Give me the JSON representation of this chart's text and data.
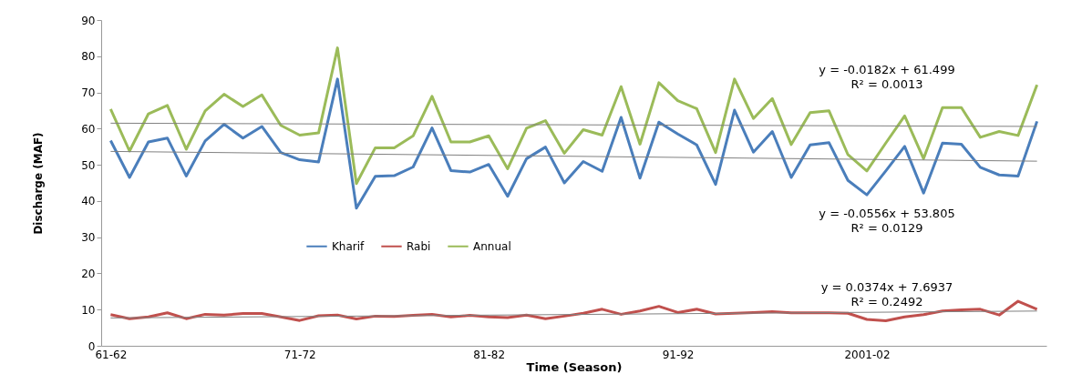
{
  "chart_data": {
    "type": "line",
    "xlabel": "Time (Season)",
    "ylabel": "Discharge (MAF)",
    "categories": [
      "61-62",
      null,
      null,
      null,
      null,
      null,
      null,
      null,
      null,
      null,
      "71-72",
      null,
      null,
      null,
      null,
      null,
      null,
      null,
      null,
      null,
      "81-82",
      null,
      null,
      null,
      null,
      null,
      null,
      null,
      null,
      null,
      "91-92",
      null,
      null,
      null,
      null,
      null,
      null,
      null,
      null,
      null,
      "2001-02",
      null,
      null,
      null,
      null,
      null,
      null,
      null,
      null,
      null
    ],
    "series": [
      {
        "name": "Kharif",
        "color": "#4a7ebb",
        "values": [
          56.7,
          46.5,
          56.3,
          57.4,
          46.9,
          56.6,
          61.2,
          57.4,
          60.6,
          53.4,
          51.4,
          50.8,
          73.7,
          38.0,
          46.8,
          47.0,
          49.4,
          60.2,
          48.4,
          48.0,
          50.1,
          41.3,
          51.7,
          54.9,
          45.0,
          50.9,
          48.2,
          63.1,
          46.3,
          61.8,
          58.5,
          55.5,
          44.6,
          65.1,
          53.5,
          59.2,
          46.5,
          55.5,
          56.1,
          45.7,
          41.7,
          48.3,
          55.1,
          42.2,
          56.0,
          55.7,
          49.3,
          47.2,
          46.9,
          62.0
        ]
      },
      {
        "name": "Rabi",
        "color": "#c0504d",
        "values": [
          8.6,
          7.5,
          8.0,
          9.1,
          7.5,
          8.7,
          8.5,
          8.9,
          8.9,
          8.0,
          7.0,
          8.3,
          8.5,
          7.4,
          8.2,
          8.1,
          8.4,
          8.7,
          8.0,
          8.4,
          8.0,
          7.8,
          8.5,
          7.5,
          8.2,
          9.0,
          10.1,
          8.7,
          9.6,
          10.9,
          9.2,
          10.1,
          8.8,
          9.0,
          9.2,
          9.4,
          9.1,
          9.1,
          9.1,
          9.0,
          7.3,
          6.9,
          8.0,
          8.6,
          9.6,
          9.9,
          10.1,
          8.5,
          12.3,
          10.1
        ]
      },
      {
        "name": "Annual",
        "color": "#9bbb59",
        "values": [
          65.4,
          53.8,
          64.1,
          66.4,
          54.3,
          64.9,
          69.5,
          66.1,
          69.3,
          60.9,
          58.2,
          58.8,
          82.3,
          44.8,
          54.7,
          54.7,
          58.0,
          68.9,
          56.3,
          56.3,
          58.0,
          48.9,
          60.1,
          62.2,
          53.2,
          59.7,
          58.2,
          71.6,
          55.7,
          72.7,
          67.7,
          65.5,
          53.4,
          73.7,
          62.8,
          68.3,
          55.6,
          64.4,
          64.9,
          52.8,
          48.3,
          56.0,
          63.5,
          51.7,
          65.8,
          65.8,
          57.6,
          59.2,
          58.1,
          72.1
        ]
      },
      {
        "type": "line",
        "color": "#808080",
        "values": [
          61.5,
          null,
          null,
          null,
          null,
          null,
          null,
          null,
          null,
          null,
          null,
          null,
          null,
          null,
          null,
          null,
          null,
          null,
          null,
          null,
          null,
          null,
          null,
          null,
          null,
          null,
          null,
          null,
          null,
          null,
          null,
          null,
          null,
          null,
          null,
          null,
          null,
          null,
          null,
          null,
          null,
          null,
          null,
          null,
          null,
          null,
          null,
          null,
          null,
          60.6
        ]
      },
      {
        "type": "line",
        "color": "#808080",
        "values": [
          53.7,
          null,
          null,
          null,
          null,
          null,
          null,
          null,
          null,
          null,
          null,
          null,
          null,
          null,
          null,
          null,
          null,
          null,
          null,
          null,
          null,
          null,
          null,
          null,
          null,
          null,
          null,
          null,
          null,
          null,
          null,
          null,
          null,
          null,
          null,
          null,
          null,
          null,
          null,
          null,
          null,
          null,
          null,
          null,
          null,
          null,
          null,
          null,
          null,
          51.0
        ]
      },
      {
        "type": "line",
        "color": "#808080",
        "values": [
          7.7,
          null,
          null,
          null,
          null,
          null,
          null,
          null,
          null,
          null,
          null,
          null,
          null,
          null,
          null,
          null,
          null,
          null,
          null,
          null,
          null,
          null,
          null,
          null,
          null,
          null,
          null,
          null,
          null,
          null,
          null,
          null,
          null,
          null,
          null,
          null,
          null,
          null,
          null,
          null,
          null,
          null,
          null,
          null,
          null,
          null,
          null,
          null,
          null,
          9.6
        ]
      }
    ],
    "ylim": [
      0,
      90
    ],
    "yticks": [
      0,
      10,
      20,
      30,
      40,
      50,
      60,
      70,
      80,
      90
    ],
    "legend": "center",
    "annotations": [
      "y = -0.0182x + 61.499",
      "R² = 0.0013",
      "y = -0.0556x + 53.805",
      "R² = 0.0129",
      "y = 0.0374x + 7.6937",
      "R² = 0.2492"
    ]
  }
}
